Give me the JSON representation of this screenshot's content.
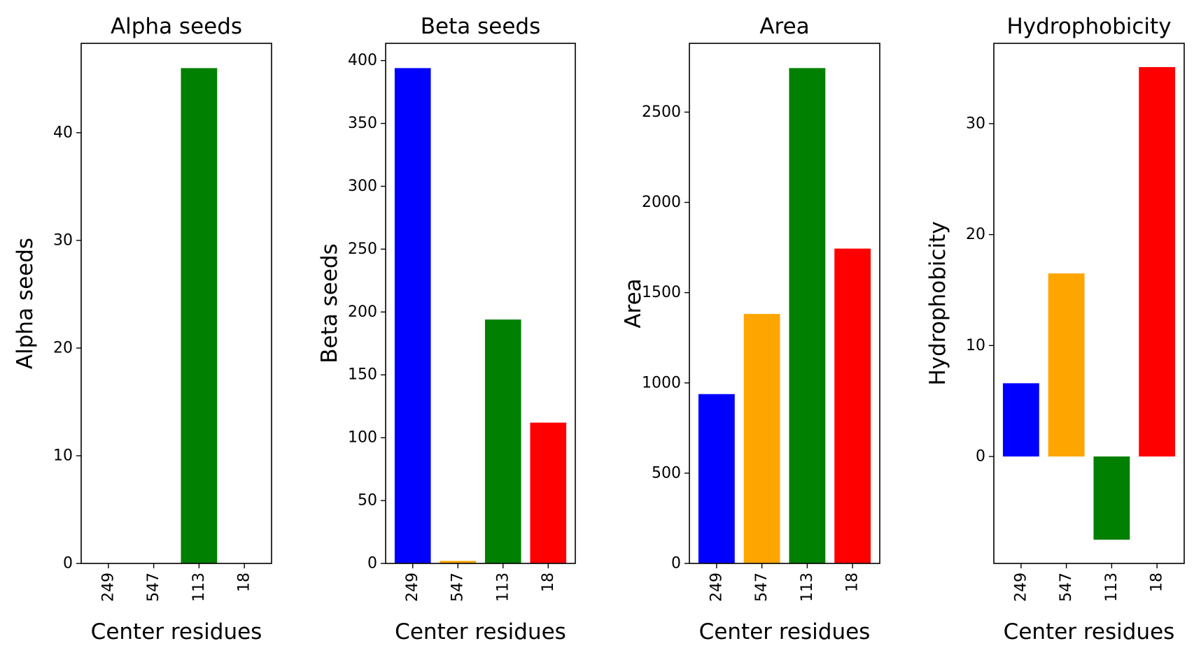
{
  "chart_data": [
    {
      "type": "bar",
      "title": "Alpha seeds",
      "xlabel": "Center residues",
      "ylabel": "Alpha seeds",
      "categories": [
        "249",
        "547",
        "113",
        "18"
      ],
      "values": [
        0,
        0,
        46,
        0
      ],
      "colors": [
        "#0000ff",
        "#ffa500",
        "#008000",
        "#ff0000"
      ],
      "ylim": [
        0,
        48.3
      ],
      "yticks": [
        0,
        10,
        20,
        30,
        40
      ]
    },
    {
      "type": "bar",
      "title": "Beta seeds",
      "xlabel": "Center residues",
      "ylabel": "Beta seeds",
      "categories": [
        "249",
        "547",
        "113",
        "18"
      ],
      "values": [
        394,
        2,
        194,
        112
      ],
      "colors": [
        "#0000ff",
        "#ffa500",
        "#008000",
        "#ff0000"
      ],
      "ylim": [
        0,
        413.7
      ],
      "yticks": [
        0,
        50,
        100,
        150,
        200,
        250,
        300,
        350,
        400
      ]
    },
    {
      "type": "bar",
      "title": "Area",
      "xlabel": "Center residues",
      "ylabel": "Area",
      "categories": [
        "249",
        "547",
        "113",
        "18"
      ],
      "values": [
        938,
        1382,
        2744,
        1744
      ],
      "colors": [
        "#0000ff",
        "#ffa500",
        "#008000",
        "#ff0000"
      ],
      "ylim": [
        0,
        2881
      ],
      "yticks": [
        0,
        500,
        1000,
        1500,
        2000,
        2500
      ]
    },
    {
      "type": "bar",
      "title": "Hydrophobicity",
      "xlabel": "Center residues",
      "ylabel": "Hydrophobicity",
      "categories": [
        "249",
        "547",
        "113",
        "18"
      ],
      "values": [
        6.6,
        16.5,
        -7.5,
        35.1
      ],
      "colors": [
        "#0000ff",
        "#ffa500",
        "#008000",
        "#ff0000"
      ],
      "ylim": [
        -9.64,
        37.24
      ],
      "yticks": [
        0,
        10,
        20,
        30
      ]
    }
  ]
}
